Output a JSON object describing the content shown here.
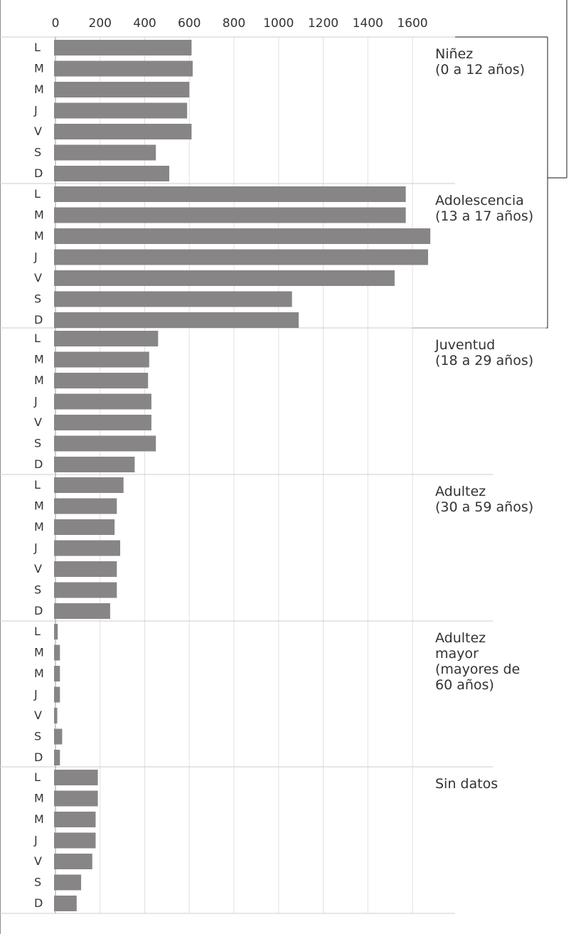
{
  "chart_data": {
    "type": "bar",
    "orientation": "horizontal",
    "xlim": [
      0,
      1700
    ],
    "x_ticks": [
      "0",
      "200",
      "400",
      "600",
      "800",
      "1000",
      "1200",
      "1400",
      "1600"
    ],
    "x_tick_values": [
      0,
      200,
      400,
      600,
      800,
      1000,
      1200,
      1400,
      1600
    ],
    "grid": true,
    "bar_color": "#878586",
    "gridline_color": "#e0e0e0",
    "divider_color": "#cccccc",
    "bracket_color": "#444444",
    "days": [
      "L",
      "M",
      "M",
      "J",
      "V",
      "S",
      "D"
    ],
    "groups": [
      {
        "label_lines": [
          "Niñez",
          "(0 a 12 años)"
        ],
        "values": [
          610,
          615,
          600,
          590,
          610,
          450,
          510
        ]
      },
      {
        "label_lines": [
          "Adolescencia",
          "(13 a 17 años)"
        ],
        "values": [
          1570,
          1570,
          1680,
          1670,
          1520,
          1060,
          1090
        ]
      },
      {
        "label_lines": [
          "Juventud",
          "(18 a 29 años)"
        ],
        "values": [
          460,
          420,
          415,
          430,
          430,
          450,
          355
        ]
      },
      {
        "label_lines": [
          "Adultez",
          "(30 a 59 años)"
        ],
        "values": [
          305,
          275,
          265,
          290,
          275,
          275,
          245
        ]
      },
      {
        "label_lines": [
          "Adultez",
          "mayor",
          "(mayores de",
          "60 años)"
        ],
        "values": [
          10,
          20,
          20,
          20,
          8,
          30,
          20
        ]
      },
      {
        "label_lines": [
          "Sin datos"
        ],
        "values": [
          190,
          190,
          180,
          180,
          165,
          115,
          95
        ]
      }
    ]
  }
}
